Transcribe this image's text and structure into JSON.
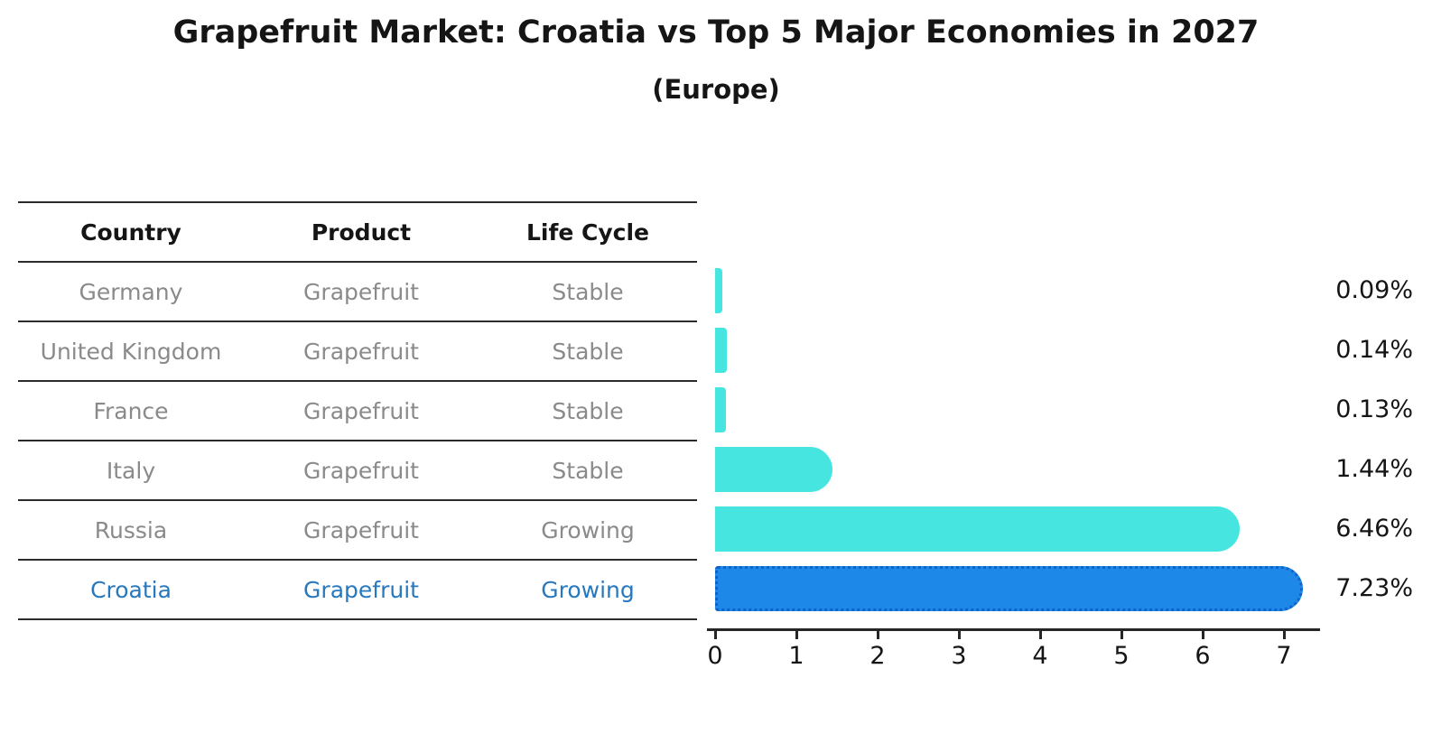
{
  "title": "Grapefruit Market: Croatia vs Top 5 Major Economies in 2027",
  "subtitle": "(Europe)",
  "table": {
    "headers": [
      "Country",
      "Product",
      "Life Cycle"
    ],
    "rows": [
      {
        "country": "Germany",
        "product": "Grapefruit",
        "life_cycle": "Stable",
        "highlight": false
      },
      {
        "country": "United Kingdom",
        "product": "Grapefruit",
        "life_cycle": "Stable",
        "highlight": false
      },
      {
        "country": "France",
        "product": "Grapefruit",
        "life_cycle": "Stable",
        "highlight": false
      },
      {
        "country": "Italy",
        "product": "Grapefruit",
        "life_cycle": "Stable",
        "highlight": false
      },
      {
        "country": "Russia",
        "product": "Grapefruit",
        "life_cycle": "Growing",
        "highlight": false
      },
      {
        "country": "Croatia",
        "product": "Grapefruit",
        "life_cycle": "Growing",
        "highlight": true
      }
    ]
  },
  "chart_data": {
    "type": "bar",
    "orientation": "horizontal",
    "categories": [
      "Germany",
      "United Kingdom",
      "France",
      "Italy",
      "Russia",
      "Croatia"
    ],
    "values": [
      0.09,
      0.14,
      0.13,
      1.44,
      6.46,
      7.23
    ],
    "value_labels": [
      "0.09%",
      "0.14%",
      "0.13%",
      "1.44%",
      "6.46%",
      "7.23%"
    ],
    "x_ticks": [
      "0",
      "1",
      "2",
      "3",
      "4",
      "5",
      "6",
      "7"
    ],
    "xlim": [
      0,
      7.5
    ],
    "highlight_index": 5,
    "grid": "off",
    "legend": "none"
  },
  "colors": {
    "bar_default": "#46E5E0",
    "bar_highlight": "#1E88E8",
    "bar_highlight_border": "#0F63C8",
    "highlight_text": "#2878BE",
    "table_text": "#8A8A8A",
    "heading_text": "#151515"
  }
}
